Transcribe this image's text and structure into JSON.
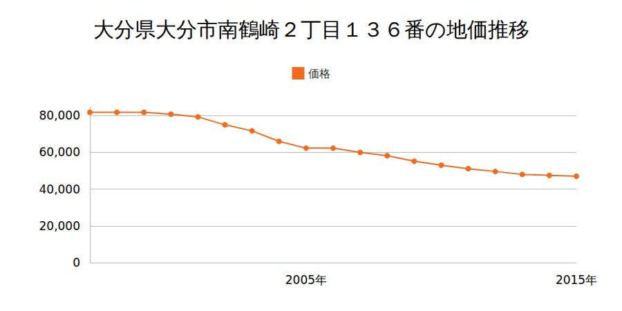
{
  "chart_data": {
    "type": "line",
    "title": "大分県大分市南鶴崎２丁目１３６番の地価推移",
    "categories": [
      null,
      null,
      null,
      null,
      null,
      null,
      null,
      null,
      "2005年",
      null,
      null,
      null,
      null,
      null,
      null,
      null,
      null,
      null,
      "2015年"
    ],
    "series": [
      {
        "name": "価格",
        "color": "#f26b1d",
        "marker": "circle",
        "line_style": "solid",
        "values": [
          81800,
          81800,
          81800,
          80800,
          79300,
          75000,
          71700,
          66000,
          62300,
          62300,
          60000,
          58200,
          55200,
          53000,
          51100,
          49600,
          48000,
          47500,
          47000
        ]
      }
    ],
    "ylim": [
      0,
      85000
    ],
    "yticks": [
      0,
      {
        "value": 20000,
        "label": "20,000"
      },
      {
        "value": 40000,
        "label": "40,000"
      },
      {
        "value": 60000,
        "label": "60,000"
      },
      {
        "value": 80000,
        "label": "80,000"
      }
    ],
    "grid": true,
    "legend": "top"
  }
}
